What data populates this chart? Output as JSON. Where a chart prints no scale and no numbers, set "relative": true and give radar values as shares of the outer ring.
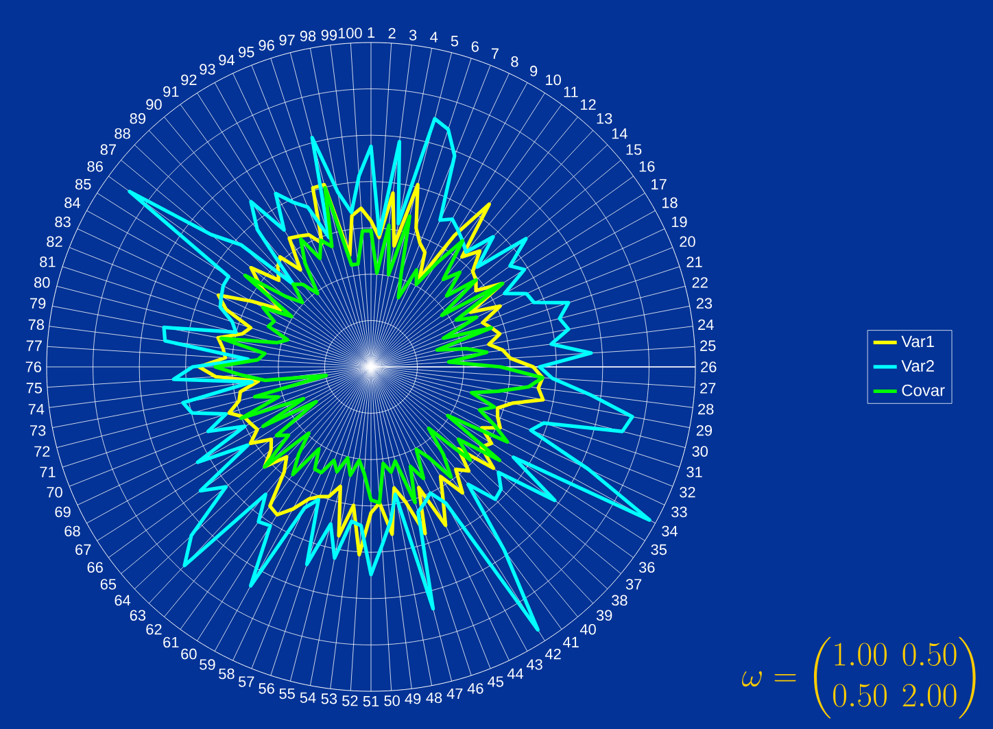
{
  "chart_data": {
    "type": "radar",
    "relative": true,
    "grid": true,
    "legend": "right",
    "categories": [
      "1",
      "2",
      "3",
      "4",
      "5",
      "6",
      "7",
      "8",
      "9",
      "10",
      "11",
      "12",
      "13",
      "14",
      "15",
      "16",
      "17",
      "18",
      "19",
      "20",
      "21",
      "22",
      "23",
      "24",
      "25",
      "26",
      "27",
      "28",
      "29",
      "30",
      "31",
      "32",
      "33",
      "34",
      "35",
      "36",
      "37",
      "38",
      "39",
      "40",
      "41",
      "42",
      "43",
      "44",
      "45",
      "46",
      "47",
      "48",
      "49",
      "50",
      "51",
      "52",
      "53",
      "54",
      "55",
      "56",
      "57",
      "58",
      "59",
      "60",
      "61",
      "62",
      "63",
      "64",
      "65",
      "66",
      "67",
      "68",
      "69",
      "70",
      "71",
      "72",
      "73",
      "74",
      "75",
      "76",
      "77",
      "78",
      "79",
      "80",
      "81",
      "82",
      "83",
      "84",
      "85",
      "86",
      "87",
      "88",
      "89",
      "90",
      "91",
      "92",
      "93",
      "94",
      "95",
      "96",
      "97",
      "98",
      "99",
      "100"
    ],
    "series": [
      {
        "name": "Var1",
        "color": "#ffff00",
        "values": [
          0.45,
          0.4,
          0.54,
          0.38,
          0.58,
          0.45,
          0.41,
          0.39,
          0.31,
          0.48,
          0.62,
          0.44,
          0.49,
          0.43,
          0.42,
          0.4,
          0.48,
          0.35,
          0.44,
          0.37,
          0.39,
          0.41,
          0.37,
          0.41,
          0.43,
          0.5,
          0.53,
          0.52,
          0.54,
          0.45,
          0.41,
          0.42,
          0.44,
          0.39,
          0.44,
          0.42,
          0.49,
          0.37,
          0.44,
          0.41,
          0.48,
          0.4,
          0.46,
          0.54,
          0.4,
          0.54,
          0.43,
          0.38,
          0.52,
          0.42,
          0.45,
          0.58,
          0.43,
          0.53,
          0.38,
          0.42,
          0.43,
          0.45,
          0.5,
          0.54,
          0.53,
          0.42,
          0.38,
          0.45,
          0.4,
          0.38,
          0.44,
          0.4,
          0.41,
          0.42,
          0.46,
          0.42,
          0.41,
          0.35,
          0.48,
          0.53,
          0.45,
          0.46,
          0.48,
          0.41,
          0.39,
          0.48,
          0.52,
          0.42,
          0.33,
          0.42,
          0.48,
          0.39,
          0.42,
          0.44,
          0.37,
          0.47,
          0.46,
          0.45,
          0.41,
          0.58,
          0.58,
          0.35,
          0.47,
          0.49
        ]
      },
      {
        "name": "Var2",
        "color": "#00ffff",
        "values": [
          0.68,
          0.41,
          0.7,
          0.45,
          0.79,
          0.77,
          0.7,
          0.5,
          0.52,
          0.5,
          0.48,
          0.46,
          0.55,
          0.45,
          0.62,
          0.53,
          0.56,
          0.47,
          0.53,
          0.54,
          0.64,
          0.6,
          0.62,
          0.56,
          0.68,
          0.52,
          0.56,
          0.68,
          0.82,
          0.8,
          0.56,
          0.53,
          0.74,
          0.98,
          0.52,
          0.7,
          0.51,
          0.55,
          0.56,
          0.47,
          0.7,
          0.96,
          0.48,
          0.43,
          0.45,
          0.47,
          0.77,
          0.4,
          0.48,
          0.55,
          0.64,
          0.49,
          0.48,
          0.6,
          0.5,
          0.64,
          0.44,
          0.48,
          0.77,
          0.58,
          0.59,
          0.51,
          0.84,
          0.76,
          0.58,
          0.65,
          0.45,
          0.61,
          0.43,
          0.54,
          0.47,
          0.57,
          0.59,
          0.37,
          0.61,
          0.55,
          0.38,
          0.64,
          0.65,
          0.43,
          0.45,
          0.5,
          0.51,
          0.52,
          0.52,
          0.92,
          0.64,
          0.55,
          0.35,
          0.55,
          0.63,
          0.5,
          0.61,
          0.56,
          0.53,
          0.42,
          0.73,
          0.55,
          0.48,
          0.59
        ]
      },
      {
        "name": "Covar",
        "color": "#00ff00",
        "values": [
          0.42,
          0.29,
          0.44,
          0.29,
          0.48,
          0.3,
          0.23,
          0.33,
          0.29,
          0.38,
          0.48,
          0.35,
          0.4,
          0.32,
          0.42,
          0.27,
          0.48,
          0.3,
          0.36,
          0.24,
          0.39,
          0.21,
          0.3,
          0.36,
          0.24,
          0.4,
          0.53,
          0.49,
          0.4,
          0.32,
          0.4,
          0.36,
          0.42,
          0.48,
          0.28,
          0.49,
          0.35,
          0.42,
          0.26,
          0.35,
          0.42,
          0.33,
          0.29,
          0.38,
          0.33,
          0.44,
          0.3,
          0.33,
          0.3,
          0.42,
          0.41,
          0.33,
          0.29,
          0.34,
          0.29,
          0.34,
          0.31,
          0.36,
          0.36,
          0.3,
          0.41,
          0.35,
          0.28,
          0.45,
          0.33,
          0.36,
          0.2,
          0.38,
          0.23,
          0.43,
          0.3,
          0.37,
          0.14,
          0.33,
          0.4,
          0.48,
          0.35,
          0.33,
          0.47,
          0.3,
          0.27,
          0.34,
          0.33,
          0.38,
          0.29,
          0.48,
          0.34,
          0.29,
          0.35,
          0.33,
          0.28,
          0.38,
          0.45,
          0.37,
          0.42,
          0.39,
          0.57,
          0.32,
          0.32,
          0.42
        ]
      }
    ],
    "annotations": [
      "\\omega = \\begin{pmatrix}1.00 & 0.50\\\\ 0.50 & 2.00\\end{pmatrix}"
    ]
  }
}
